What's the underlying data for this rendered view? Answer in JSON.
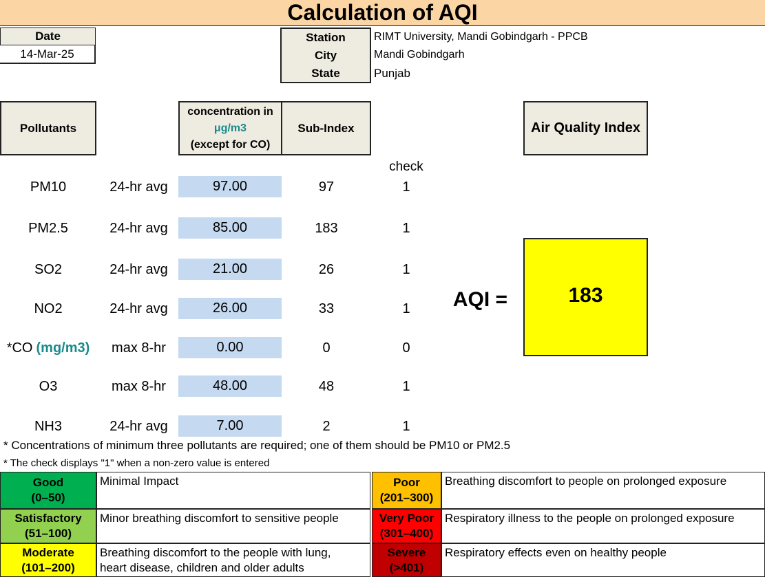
{
  "title": "Calculation of AQI",
  "date": {
    "label": "Date",
    "value": "14-Mar-25"
  },
  "location": {
    "station_label": "Station",
    "station_value": "RIMT University, Mandi Gobindgarh - PPCB",
    "city_label": "City",
    "city_value": "Mandi Gobindgarh",
    "state_label": "State",
    "state_value": "Punjab"
  },
  "table_headers": {
    "pollutants": "Pollutants",
    "conc_line1": "concentration in",
    "conc_line2": "μg/m3",
    "conc_line3": "(except for CO)",
    "subindex": "Sub-Index",
    "check": "check",
    "aqi_header": "Air Quality Index"
  },
  "pollutants": [
    {
      "name": "PM10",
      "unit": "",
      "avg": "24-hr avg",
      "conc": "97.00",
      "subindex": "97",
      "check": "1"
    },
    {
      "name": "PM2.5",
      "unit": "",
      "avg": "24-hr avg",
      "conc": "85.00",
      "subindex": "183",
      "check": "1"
    },
    {
      "name": "SO2",
      "unit": "",
      "avg": "24-hr avg",
      "conc": "21.00",
      "subindex": "26",
      "check": "1"
    },
    {
      "name": "NO2",
      "unit": "",
      "avg": "24-hr avg",
      "conc": "26.00",
      "subindex": "33",
      "check": "1"
    },
    {
      "name": "*CO",
      "unit": "(mg/m3)",
      "avg": "max 8-hr",
      "conc": "0.00",
      "subindex": "0",
      "check": "0"
    },
    {
      "name": "O3",
      "unit": "",
      "avg": "max 8-hr",
      "conc": "48.00",
      "subindex": "48",
      "check": "1"
    },
    {
      "name": "NH3",
      "unit": "",
      "avg": "24-hr avg",
      "conc": "7.00",
      "subindex": "2",
      "check": "1"
    }
  ],
  "aqi": {
    "label": "AQI =",
    "value": "183"
  },
  "notes": {
    "note1": "* Concentrations of minimum three pollutants are required; one of them should be PM10 or PM2.5",
    "note2": "* The check displays \"1\" when a non-zero value is entered"
  },
  "legend": [
    {
      "name": "Good",
      "range": "(0–50)",
      "desc": "Minimal Impact",
      "color": "#00b050"
    },
    {
      "name": "Satisfactory",
      "range": "(51–100)",
      "desc": "Minor breathing discomfort to sensitive people",
      "color": "#92d050"
    },
    {
      "name": "Moderate",
      "range": "(101–200)",
      "desc_line1": "Breathing discomfort to the people with lung,",
      "desc_line2": "heart disease, children and older adults",
      "color": "#ffff00"
    },
    {
      "name": "Poor",
      "range": "(201–300)",
      "desc": "Breathing discomfort to people on prolonged exposure",
      "color": "#ffc000"
    },
    {
      "name": "Very Poor",
      "range": "(301–400)",
      "desc": "Respiratory illness to the people on prolonged exposure",
      "color": "#ff0000"
    },
    {
      "name": "Severe",
      "range": "(>401)",
      "desc": "Respiratory effects even on healthy people",
      "color": "#c00000"
    }
  ],
  "colors": {
    "title_bg": "#fcd5a5",
    "header_bg": "#eeece1",
    "conc_bg": "#c5d9f1",
    "aqi_bg": "#ffff00",
    "teal": "#1a8a8a"
  }
}
